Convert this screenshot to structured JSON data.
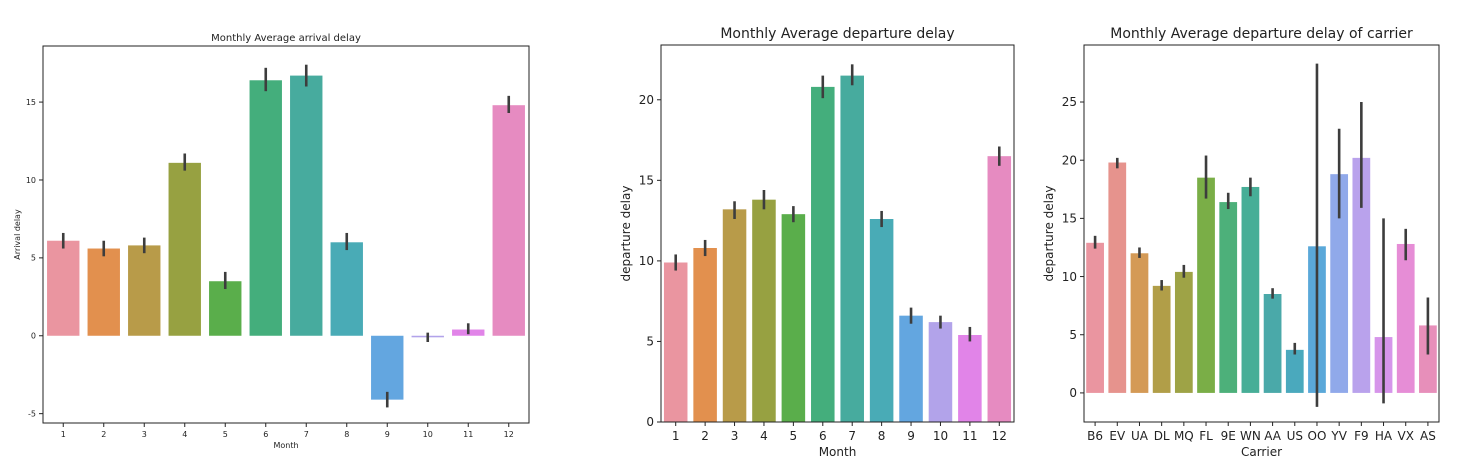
{
  "chart_data": [
    {
      "type": "bar",
      "title": "Monthly Average arrival delay",
      "xlabel": "Month",
      "ylabel": "Arrival delay",
      "ylim": [
        -5.6,
        18.6
      ],
      "yticks": [
        -5,
        0,
        5,
        10,
        15
      ],
      "grid": false,
      "categories": [
        "1",
        "2",
        "3",
        "4",
        "5",
        "6",
        "7",
        "8",
        "9",
        "10",
        "11",
        "12"
      ],
      "values": [
        6.1,
        5.6,
        5.8,
        11.1,
        3.5,
        16.4,
        16.7,
        6.0,
        -4.1,
        -0.1,
        0.4,
        14.8
      ],
      "error_low": [
        5.6,
        5.1,
        5.3,
        10.6,
        3.0,
        15.7,
        16.0,
        5.5,
        -4.6,
        -0.4,
        0.1,
        14.3
      ],
      "error_high": [
        6.6,
        6.1,
        6.3,
        11.7,
        4.1,
        17.2,
        17.4,
        6.6,
        -3.6,
        0.2,
        0.8,
        15.4
      ],
      "colors": [
        "#ea95a0",
        "#e2904e",
        "#b89b49",
        "#97a141",
        "#5aae4b",
        "#44ae7c",
        "#47ab9e",
        "#49abb6",
        "#63a6e0",
        "#b2a3ea",
        "#e184e8",
        "#e68bc1"
      ]
    },
    {
      "type": "bar",
      "title": "Monthly Average departure delay",
      "xlabel": "Month",
      "ylabel": "departure delay",
      "ylim": [
        0,
        23.4
      ],
      "yticks": [
        0,
        5,
        10,
        15,
        20
      ],
      "grid": false,
      "categories": [
        "1",
        "2",
        "3",
        "4",
        "5",
        "6",
        "7",
        "8",
        "9",
        "10",
        "11",
        "12"
      ],
      "values": [
        9.9,
        10.8,
        13.2,
        13.8,
        12.9,
        20.8,
        21.5,
        12.6,
        6.6,
        6.2,
        5.4,
        16.5
      ],
      "error_low": [
        9.4,
        10.3,
        12.6,
        13.2,
        12.4,
        20.1,
        20.9,
        12.1,
        6.1,
        5.8,
        5.0,
        15.9
      ],
      "error_high": [
        10.4,
        11.3,
        13.7,
        14.4,
        13.4,
        21.5,
        22.2,
        13.1,
        7.1,
        6.6,
        5.9,
        17.1
      ],
      "colors": [
        "#ea95a0",
        "#e2904e",
        "#b89b49",
        "#97a141",
        "#5aae4b",
        "#44ae7c",
        "#47ab9e",
        "#49abb6",
        "#63a6e0",
        "#b2a3ea",
        "#e184e8",
        "#e68bc1"
      ]
    },
    {
      "type": "bar",
      "title": "Monthly Average departure delay of carrier",
      "xlabel": "Carrier",
      "ylabel": "departure delay",
      "ylim": [
        -2.5,
        29.9
      ],
      "yticks": [
        0,
        5,
        10,
        15,
        20,
        25
      ],
      "grid": false,
      "categories": [
        "B6",
        "EV",
        "UA",
        "DL",
        "MQ",
        "FL",
        "9E",
        "WN",
        "AA",
        "US",
        "OO",
        "YV",
        "F9",
        "HA",
        "VX",
        "AS"
      ],
      "values": [
        12.9,
        19.8,
        12.0,
        9.2,
        10.4,
        18.5,
        16.4,
        17.7,
        8.5,
        3.7,
        12.6,
        18.8,
        20.2,
        4.8,
        12.8,
        5.8
      ],
      "error_low": [
        12.4,
        19.3,
        11.6,
        8.8,
        9.9,
        16.7,
        15.8,
        16.9,
        8.1,
        3.3,
        -1.2,
        15.0,
        15.9,
        -0.9,
        11.4,
        3.3
      ],
      "error_high": [
        13.5,
        20.2,
        12.5,
        9.7,
        11.0,
        20.4,
        17.2,
        18.5,
        9.0,
        4.3,
        28.3,
        22.7,
        25.0,
        15.0,
        14.1,
        8.2
      ],
      "colors": [
        "#ea95a0",
        "#e6938d",
        "#d49a56",
        "#b19e48",
        "#9ea346",
        "#7aae47",
        "#4db07a",
        "#47ae97",
        "#4aa9a9",
        "#4aa9bd",
        "#5aa8d9",
        "#90a9ea",
        "#b9a2ec",
        "#d695ea",
        "#e68dd6",
        "#e78fba"
      ]
    }
  ]
}
